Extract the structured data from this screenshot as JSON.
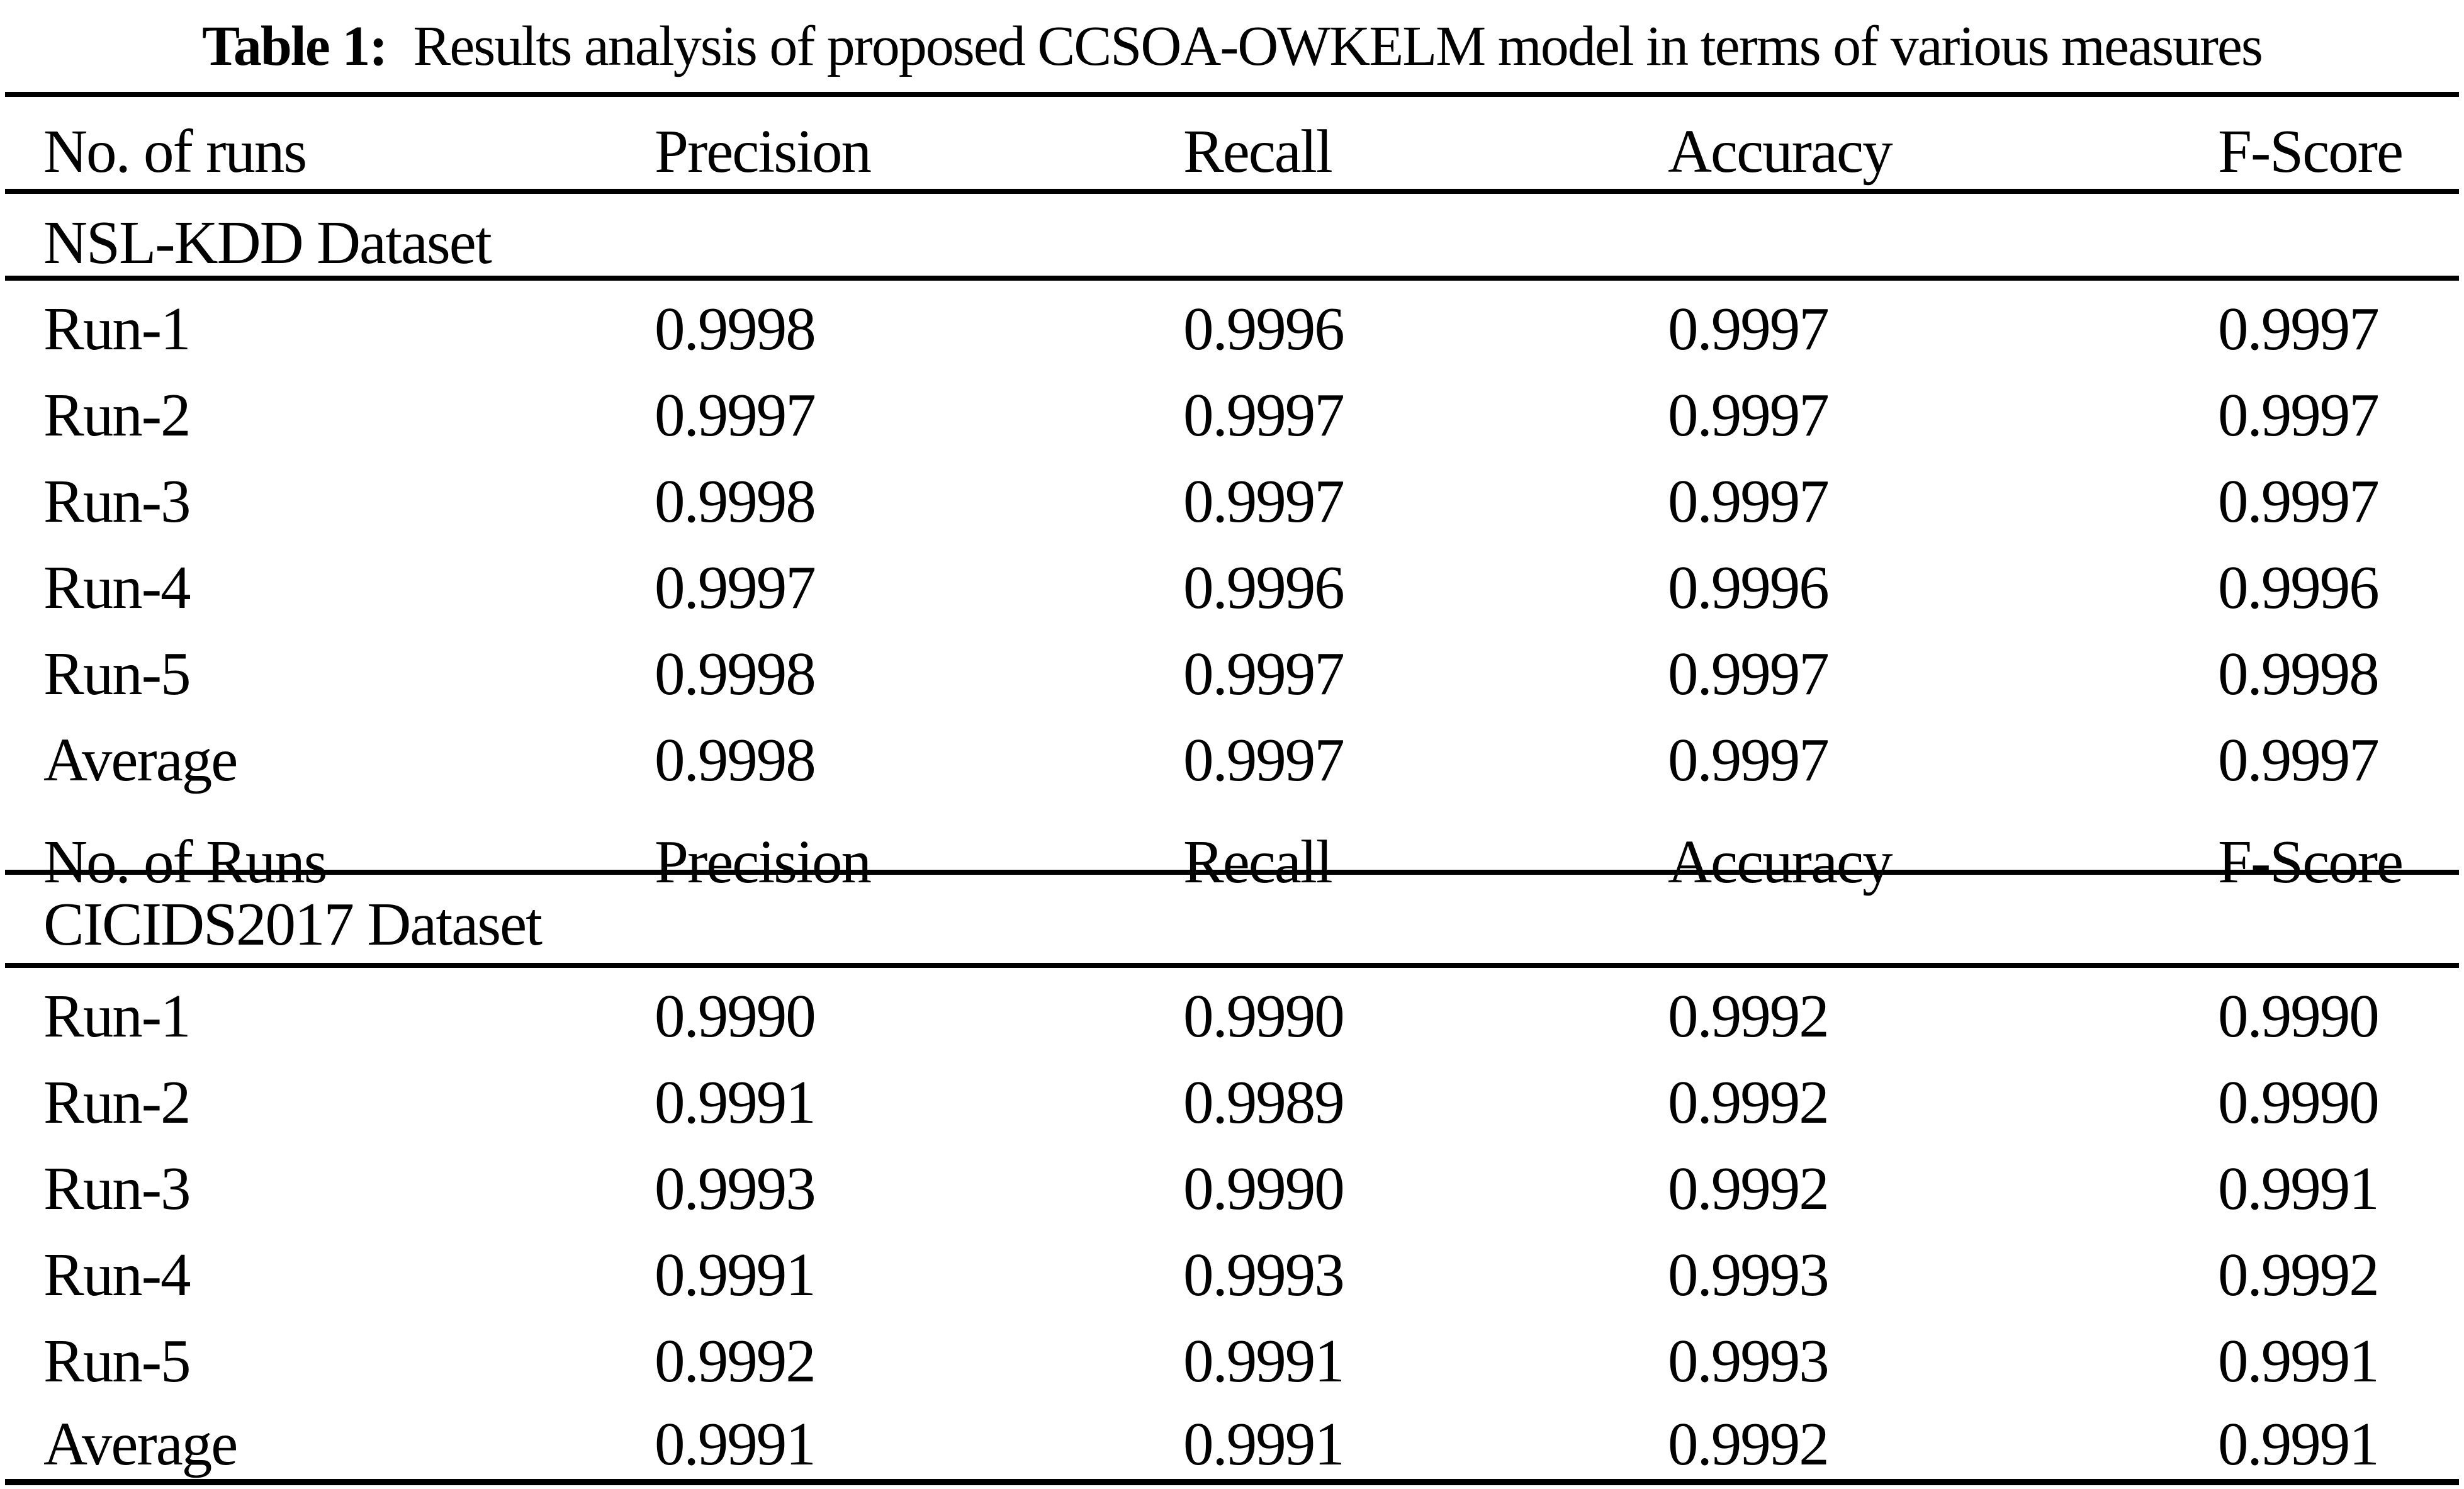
{
  "caption": {
    "label": "Table 1:",
    "text": "Results analysis of proposed CCSOA-OWKELM model in terms of various measures"
  },
  "header_row_1": [
    "No. of runs",
    "Precision",
    "Recall",
    "Accuracy",
    "F-Score"
  ],
  "header_row_2": [
    "No. of Runs",
    "Precision",
    "Recall",
    "Accuracy",
    "F-Score"
  ],
  "sections": [
    {
      "name": "NSL-KDD Dataset",
      "rows": [
        {
          "run": "Run-1",
          "precision": "0.9998",
          "recall": "0.9996",
          "accuracy": "0.9997",
          "fscore": "0.9997"
        },
        {
          "run": "Run-2",
          "precision": "0.9997",
          "recall": "0.9997",
          "accuracy": "0.9997",
          "fscore": "0.9997"
        },
        {
          "run": "Run-3",
          "precision": "0.9998",
          "recall": "0.9997",
          "accuracy": "0.9997",
          "fscore": "0.9997"
        },
        {
          "run": "Run-4",
          "precision": "0.9997",
          "recall": "0.9996",
          "accuracy": "0.9996",
          "fscore": "0.9996"
        },
        {
          "run": "Run-5",
          "precision": "0.9998",
          "recall": "0.9997",
          "accuracy": "0.9997",
          "fscore": "0.9998"
        },
        {
          "run": "Average",
          "precision": "0.9998",
          "recall": "0.9997",
          "accuracy": "0.9997",
          "fscore": "0.9997"
        }
      ]
    },
    {
      "name": "CICIDS2017 Dataset",
      "rows": [
        {
          "run": "Run-1",
          "precision": "0.9990",
          "recall": "0.9990",
          "accuracy": "0.9992",
          "fscore": "0.9990"
        },
        {
          "run": "Run-2",
          "precision": "0.9991",
          "recall": "0.9989",
          "accuracy": "0.9992",
          "fscore": "0.9990"
        },
        {
          "run": "Run-3",
          "precision": "0.9993",
          "recall": "0.9990",
          "accuracy": "0.9992",
          "fscore": "0.9991"
        },
        {
          "run": "Run-4",
          "precision": "0.9991",
          "recall": "0.9993",
          "accuracy": "0.9993",
          "fscore": "0.9992"
        },
        {
          "run": "Run-5",
          "precision": "0.9992",
          "recall": "0.9991",
          "accuracy": "0.9993",
          "fscore": "0.9991"
        },
        {
          "run": "Average",
          "precision": "0.9991",
          "recall": "0.9991",
          "accuracy": "0.9992",
          "fscore": "0.9991"
        }
      ]
    }
  ]
}
